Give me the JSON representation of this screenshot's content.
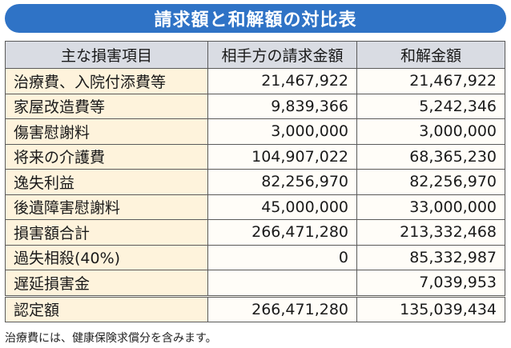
{
  "title": "請求額と和解額の対比表",
  "headers": [
    "主な損害項目",
    "相手方の請求金額",
    "和解金額"
  ],
  "rows": [
    {
      "item": "治療費、入院付添費等",
      "claim": "21,467,922",
      "settlement": "21,467,922"
    },
    {
      "item": "家屋改造費等",
      "claim": "9,839,366",
      "settlement": "5,242,346"
    },
    {
      "item": "傷害慰謝料",
      "claim": "3,000,000",
      "settlement": "3,000,000"
    },
    {
      "item": "将来の介護費",
      "claim": "104,907,022",
      "settlement": "68,365,230"
    },
    {
      "item": "逸失利益",
      "claim": "82,256,970",
      "settlement": "82,256,970"
    },
    {
      "item": "後遺障害慰謝料",
      "claim": "45,000,000",
      "settlement": "33,000,000"
    },
    {
      "item": "損害額合計",
      "claim": "266,471,280",
      "settlement": "213,332,468"
    },
    {
      "item": "過失相殺(40%)",
      "claim": "0",
      "settlement": "85,332,987"
    },
    {
      "item": "遅延損害金",
      "claim": "",
      "settlement": "7,039,953"
    },
    {
      "item": "認定額",
      "claim": "266,471,280",
      "settlement": "135,039,434"
    }
  ],
  "footnote": "治療費には、健康保険求償分を含みます。"
}
